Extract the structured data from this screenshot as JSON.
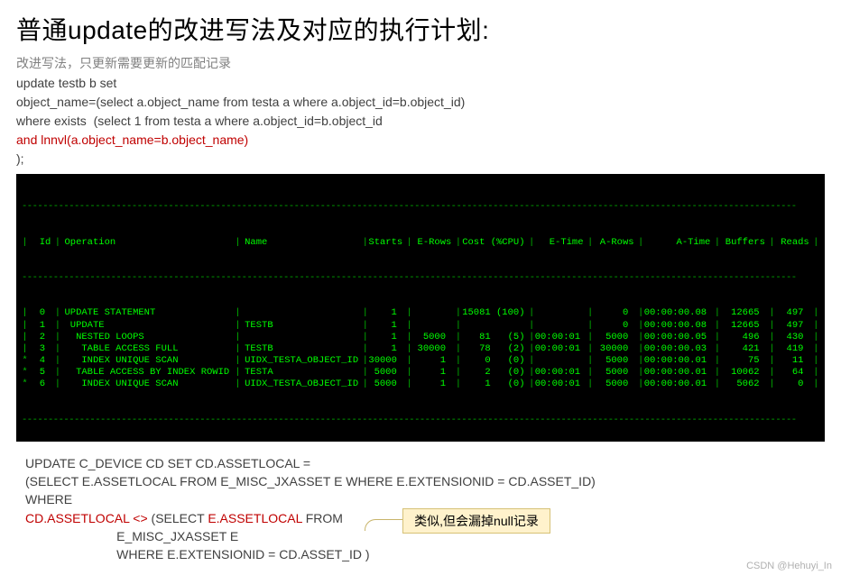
{
  "title": "普通update的改进写法及对应的执行计划:",
  "subtitle": "改进写法，只更新需要更新的匹配记录",
  "sql1": {
    "l1": "update testb b set",
    "l2": "object_name=(select a.object_name from testa a where a.object_id=b.object_id)",
    "l3": "where exists  (select 1 from testa a where a.object_id=b.object_id",
    "l4_red": "and lnnvl(a.object_name=b.object_name)",
    "l5": ");"
  },
  "plan": {
    "hr": "----------------------------------------------------------------------------------------------------------------------------------------------------",
    "headers": [
      "Id",
      "Operation",
      "Name",
      "Starts",
      "E-Rows",
      "Cost (%CPU)",
      "E-Time",
      "A-Rows",
      "A-Time",
      "Buffers",
      "Reads"
    ],
    "rows": [
      {
        "star": " ",
        "id": "0",
        "op": "UPDATE STATEMENT",
        "name": "",
        "starts": "1",
        "erows": "",
        "cost": "15081 (100)",
        "etime": "",
        "arows": "0",
        "atime": "00:00:00.08",
        "buffers": "12665",
        "reads": "497"
      },
      {
        "star": " ",
        "id": "1",
        "op": " UPDATE",
        "name": "TESTB",
        "starts": "1",
        "erows": "",
        "cost": "",
        "etime": "",
        "arows": "0",
        "atime": "00:00:00.08",
        "buffers": "12665",
        "reads": "497"
      },
      {
        "star": " ",
        "id": "2",
        "op": "  NESTED LOOPS",
        "name": "",
        "starts": "1",
        "erows": "5000",
        "cost": "81   (5)",
        "etime": "00:00:01",
        "arows": "5000",
        "atime": "00:00:00.05",
        "buffers": "496",
        "reads": "430"
      },
      {
        "star": " ",
        "id": "3",
        "op": "   TABLE ACCESS FULL",
        "name": "TESTB",
        "starts": "1",
        "erows": "30000",
        "cost": "78   (2)",
        "etime": "00:00:01",
        "arows": "30000",
        "atime": "00:00:00.03",
        "buffers": "421",
        "reads": "419"
      },
      {
        "star": "*",
        "id": "4",
        "op": "   INDEX UNIQUE SCAN",
        "name": "UIDX_TESTA_OBJECT_ID",
        "starts": "30000",
        "erows": "1",
        "cost": "0   (0)",
        "etime": "",
        "arows": "5000",
        "atime": "00:00:00.01",
        "buffers": "75",
        "reads": "11"
      },
      {
        "star": "*",
        "id": "5",
        "op": "  TABLE ACCESS BY INDEX ROWID",
        "name": "TESTA",
        "starts": "5000",
        "erows": "1",
        "cost": "2   (0)",
        "etime": "00:00:01",
        "arows": "5000",
        "atime": "00:00:00.01",
        "buffers": "10062",
        "reads": "64"
      },
      {
        "star": "*",
        "id": "6",
        "op": "   INDEX UNIQUE SCAN",
        "name": "UIDX_TESTA_OBJECT_ID",
        "starts": "5000",
        "erows": "1",
        "cost": "1   (0)",
        "etime": "00:00:01",
        "arows": "5000",
        "atime": "00:00:00.01",
        "buffers": "5062",
        "reads": "0"
      }
    ]
  },
  "sql2": {
    "l1": "UPDATE C_DEVICE CD SET CD.ASSETLOCAL =",
    "l2": "(SELECT E.ASSETLOCAL FROM E_MISC_JXASSET E WHERE E.EXTENSIONID = CD.ASSET_ID)",
    "l3": "WHERE",
    "l4_a": "CD.ASSETLOCAL <> ",
    "l4_b": "(SELECT ",
    "l4_c": "E.ASSETLOCAL ",
    "l4_d": "FROM",
    "l5": "                          E_MISC_JXASSET E",
    "l6": "                          WHERE E.EXTENSIONID = CD.ASSET_ID )"
  },
  "callout": "类似,但会漏掉null记录",
  "watermark": "CSDN @Hehuyi_In",
  "colors": {
    "red": "#c00000",
    "green": "#00ff00",
    "callout_bg": "#fff2cc",
    "callout_border": "#d6c176"
  }
}
